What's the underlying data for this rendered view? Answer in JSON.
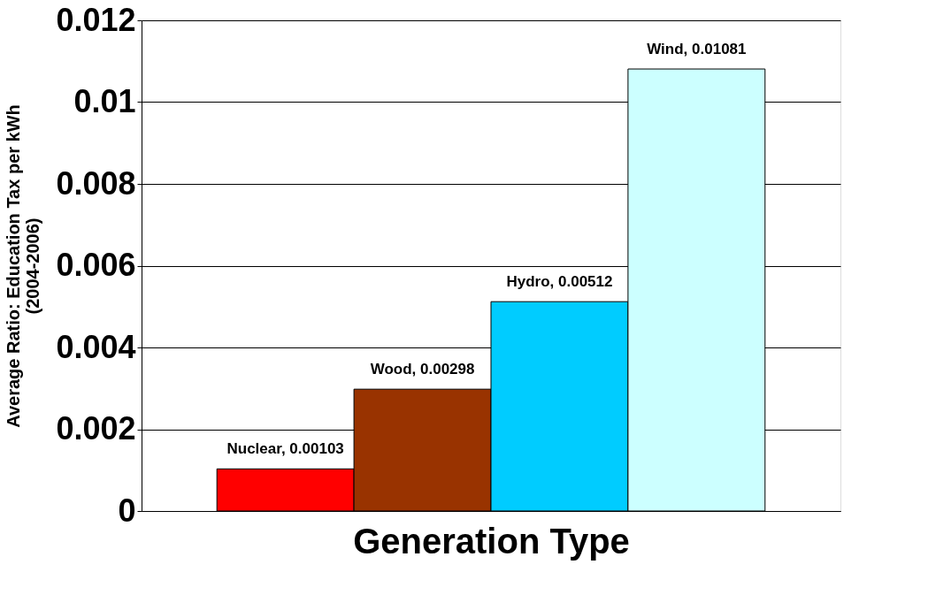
{
  "chart_data": {
    "type": "bar",
    "xlabel": "Generation Type",
    "ylabel": "Average Ratio: Education Tax per kWh\n(2004-2006)",
    "categories": [
      null,
      null,
      null,
      null
    ],
    "values": [
      0.00103,
      0.00298,
      0.00512,
      0.01081
    ],
    "colors": [
      "#ff0000",
      "#993300",
      "#00ccff",
      "#ccffff"
    ],
    "value_labels": [
      "Nuclear, 0.00103",
      "Wood, 0.00298",
      "Hydro, 0.00512",
      "Wind, 0.01081"
    ],
    "ylim": [
      0,
      0.012
    ],
    "yticks": [
      0,
      0.002,
      0.004,
      0.006,
      0.008,
      0.01,
      0.012
    ],
    "grid": "y",
    "tick_labels": "y"
  }
}
